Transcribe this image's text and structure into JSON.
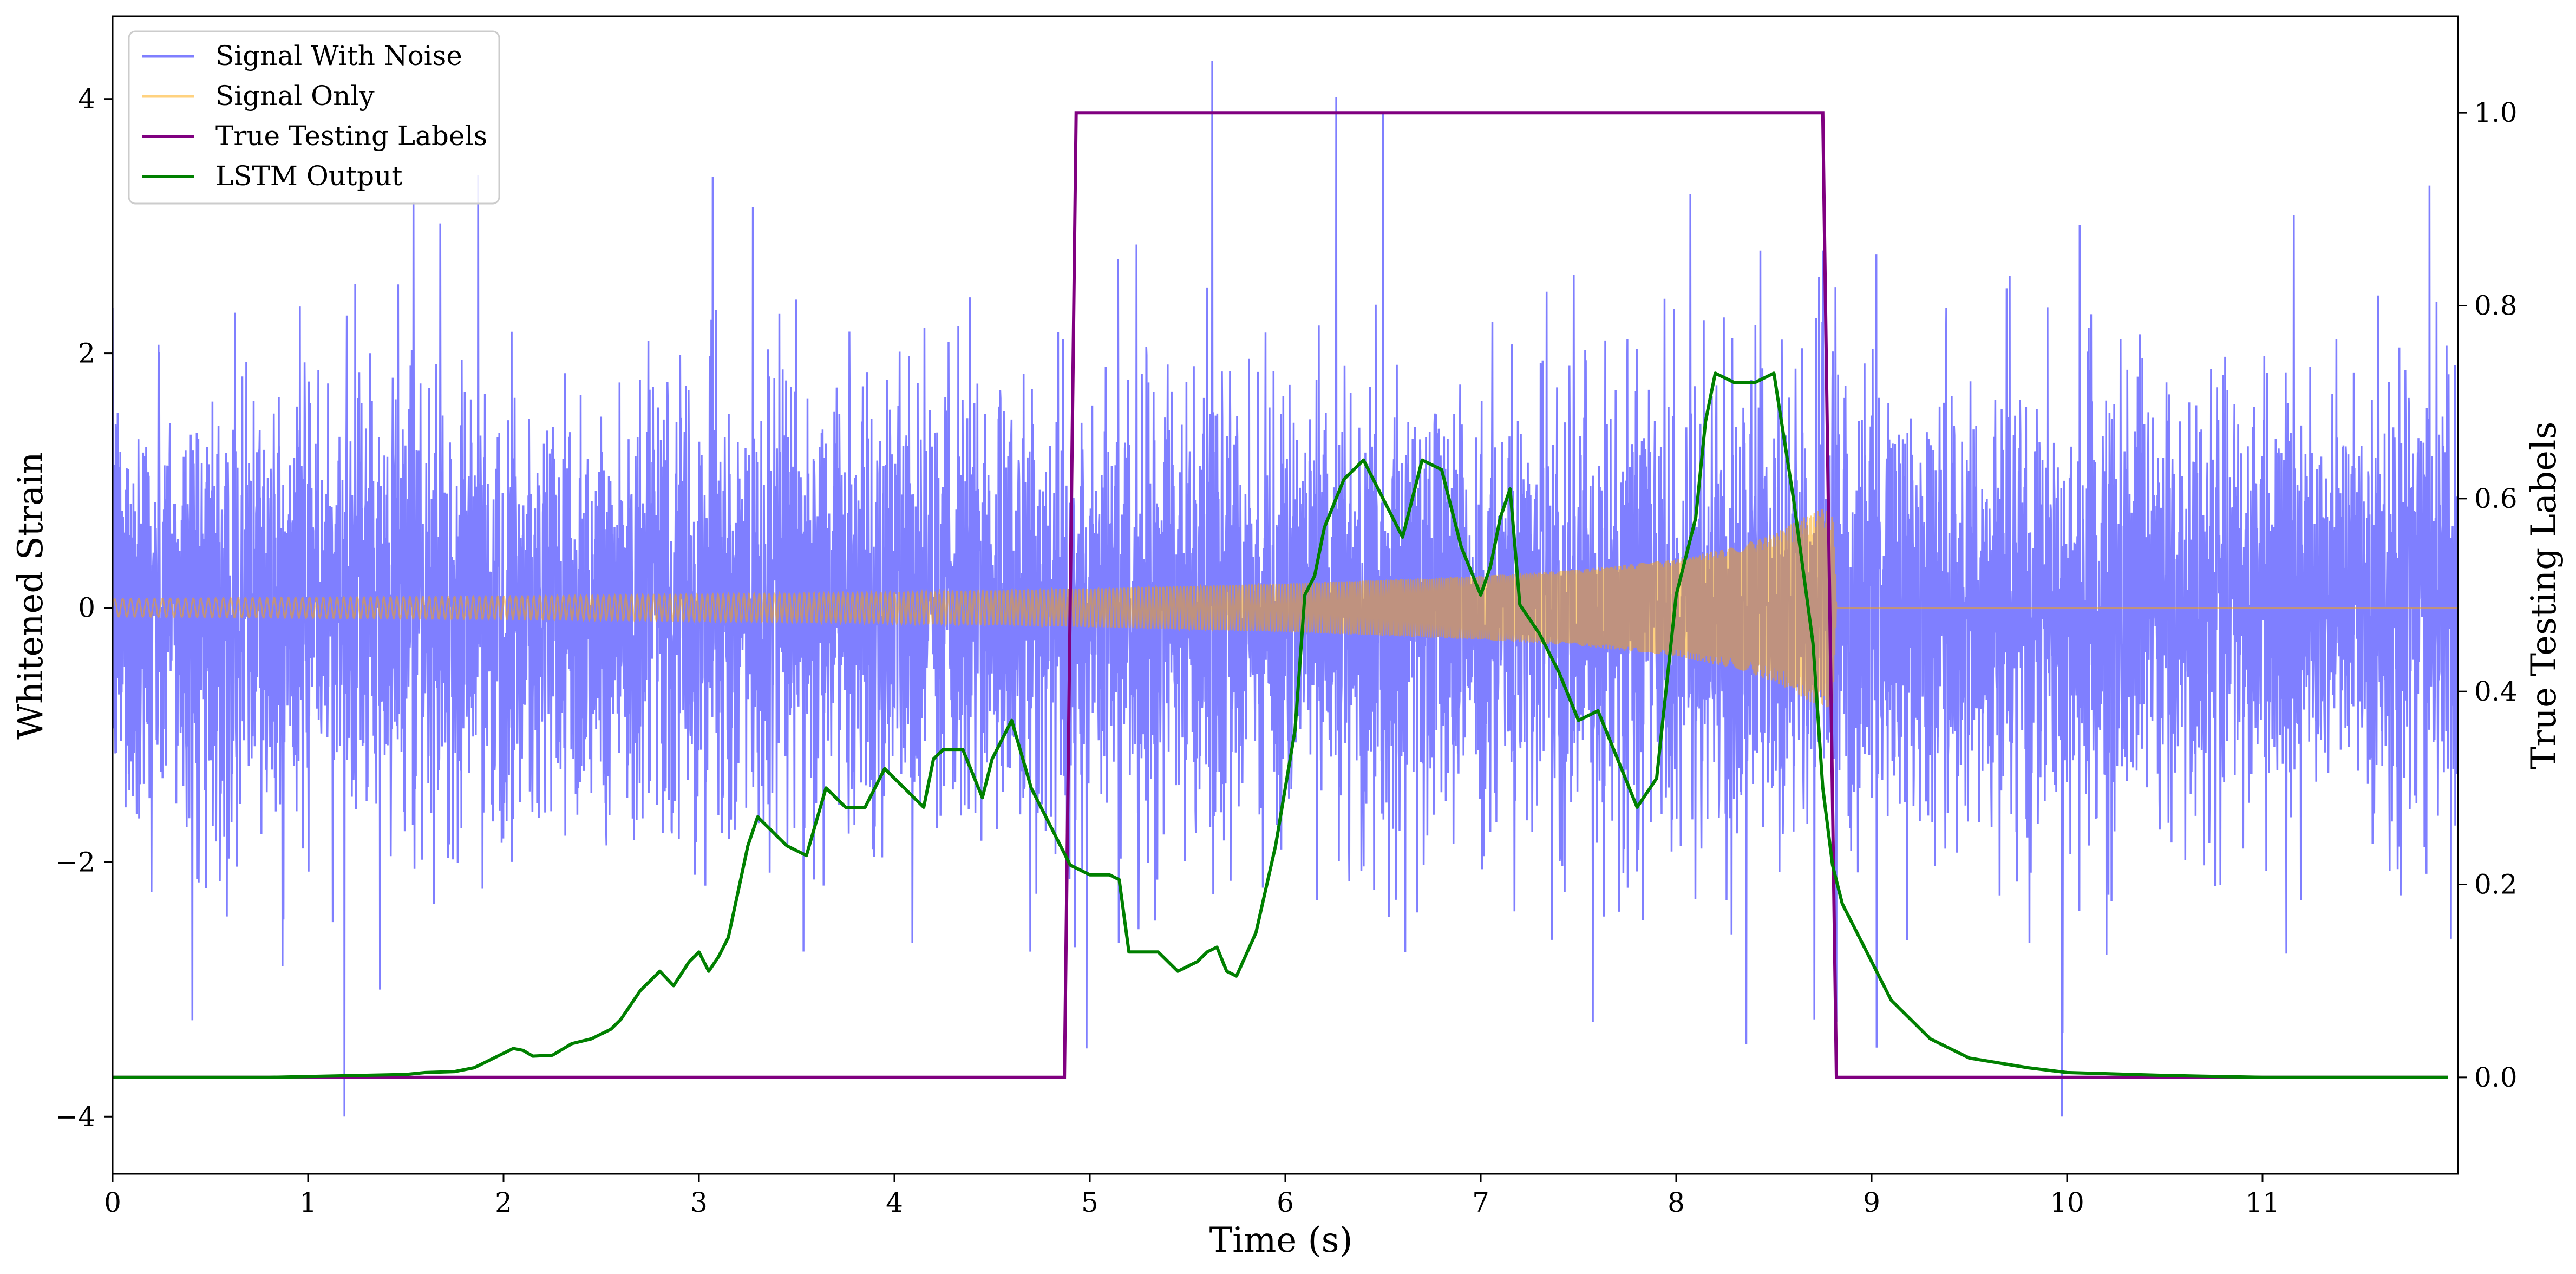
{
  "chart_data": {
    "type": "line",
    "title": "",
    "xlabel": "Time (s)",
    "ylabel": "Whitened Strain",
    "y2label": "True Testing Labels",
    "xlim": [
      0,
      12
    ],
    "ylim": [
      -4.45,
      4.65
    ],
    "y2lim": [
      -0.1,
      1.1
    ],
    "xticks": [
      0,
      1,
      2,
      3,
      4,
      5,
      6,
      7,
      8,
      9,
      10,
      11
    ],
    "yticks": [
      -4,
      -2,
      0,
      2,
      4
    ],
    "y2ticks": [
      0.0,
      0.2,
      0.4,
      0.6,
      0.8,
      1.0
    ],
    "grid": false,
    "legend_position": "top-left",
    "colors": {
      "signal_with_noise": "#0000ff",
      "signal_only": "#ffa500",
      "true_labels": "#800080",
      "lstm_output": "#008000"
    },
    "legend": [
      "Signal With Noise",
      "Signal Only",
      "True Testing Labels",
      "LSTM Output"
    ],
    "series": [
      {
        "name": "Signal With Noise",
        "axis": "left",
        "style": "dense noisy trace, alpha 0.5",
        "x_range": [
          0,
          12
        ],
        "approx_y_range": [
          -4.0,
          4.3
        ],
        "typical_band": [
          -2.5,
          2.5
        ]
      },
      {
        "name": "Signal Only",
        "axis": "left",
        "style": "chirp, alpha 0.5",
        "envelope": {
          "t": [
            0,
            2,
            4,
            5,
            6,
            7,
            7.5,
            8,
            8.3,
            8.5,
            8.7,
            8.8,
            8.82,
            12
          ],
          "amplitude": [
            0.07,
            0.09,
            0.12,
            0.15,
            0.19,
            0.25,
            0.3,
            0.38,
            0.48,
            0.58,
            0.75,
            0.8,
            0.0,
            0.0
          ]
        }
      },
      {
        "name": "True Testing Labels",
        "axis": "right",
        "x": [
          0,
          4.87,
          4.93,
          8.75,
          8.82,
          11.95
        ],
        "y": [
          0,
          0,
          1,
          1,
          0,
          0
        ]
      },
      {
        "name": "LSTM Output",
        "axis": "right",
        "x": [
          0,
          0.8,
          1.5,
          1.6,
          1.75,
          1.85,
          1.95,
          2.05,
          2.1,
          2.15,
          2.25,
          2.35,
          2.45,
          2.55,
          2.6,
          2.7,
          2.8,
          2.87,
          2.95,
          3.0,
          3.05,
          3.1,
          3.15,
          3.25,
          3.3,
          3.35,
          3.45,
          3.55,
          3.65,
          3.75,
          3.85,
          3.95,
          4.05,
          4.15,
          4.2,
          4.25,
          4.35,
          4.45,
          4.5,
          4.6,
          4.7,
          4.8,
          4.85,
          4.9,
          5.0,
          5.1,
          5.15,
          5.2,
          5.25,
          5.35,
          5.45,
          5.55,
          5.6,
          5.65,
          5.7,
          5.75,
          5.85,
          5.95,
          6.0,
          6.05,
          6.1,
          6.15,
          6.2,
          6.3,
          6.4,
          6.5,
          6.6,
          6.7,
          6.8,
          6.9,
          7.0,
          7.05,
          7.1,
          7.15,
          7.2,
          7.3,
          7.4,
          7.5,
          7.6,
          7.7,
          7.8,
          7.9,
          8.0,
          8.05,
          8.1,
          8.15,
          8.2,
          8.3,
          8.4,
          8.5,
          8.6,
          8.7,
          8.75,
          8.8,
          8.85,
          8.9,
          9.0,
          9.1,
          9.2,
          9.3,
          9.5,
          9.8,
          10.0,
          10.5,
          11.0,
          11.95
        ],
        "y": [
          0.0,
          0.0,
          0.003,
          0.005,
          0.006,
          0.01,
          0.02,
          0.03,
          0.028,
          0.022,
          0.023,
          0.035,
          0.04,
          0.05,
          0.06,
          0.09,
          0.11,
          0.095,
          0.12,
          0.13,
          0.11,
          0.125,
          0.145,
          0.24,
          0.27,
          0.26,
          0.24,
          0.23,
          0.3,
          0.28,
          0.28,
          0.32,
          0.3,
          0.28,
          0.33,
          0.34,
          0.34,
          0.29,
          0.33,
          0.37,
          0.3,
          0.26,
          0.24,
          0.22,
          0.21,
          0.21,
          0.205,
          0.13,
          0.13,
          0.13,
          0.11,
          0.12,
          0.13,
          0.135,
          0.11,
          0.105,
          0.15,
          0.24,
          0.3,
          0.36,
          0.5,
          0.52,
          0.57,
          0.62,
          0.64,
          0.6,
          0.56,
          0.64,
          0.63,
          0.55,
          0.5,
          0.53,
          0.58,
          0.61,
          0.49,
          0.46,
          0.42,
          0.37,
          0.38,
          0.33,
          0.28,
          0.31,
          0.5,
          0.54,
          0.58,
          0.68,
          0.73,
          0.72,
          0.72,
          0.73,
          0.6,
          0.45,
          0.3,
          0.22,
          0.18,
          0.16,
          0.12,
          0.08,
          0.06,
          0.04,
          0.02,
          0.01,
          0.005,
          0.002,
          0.0,
          0.0
        ]
      }
    ]
  }
}
